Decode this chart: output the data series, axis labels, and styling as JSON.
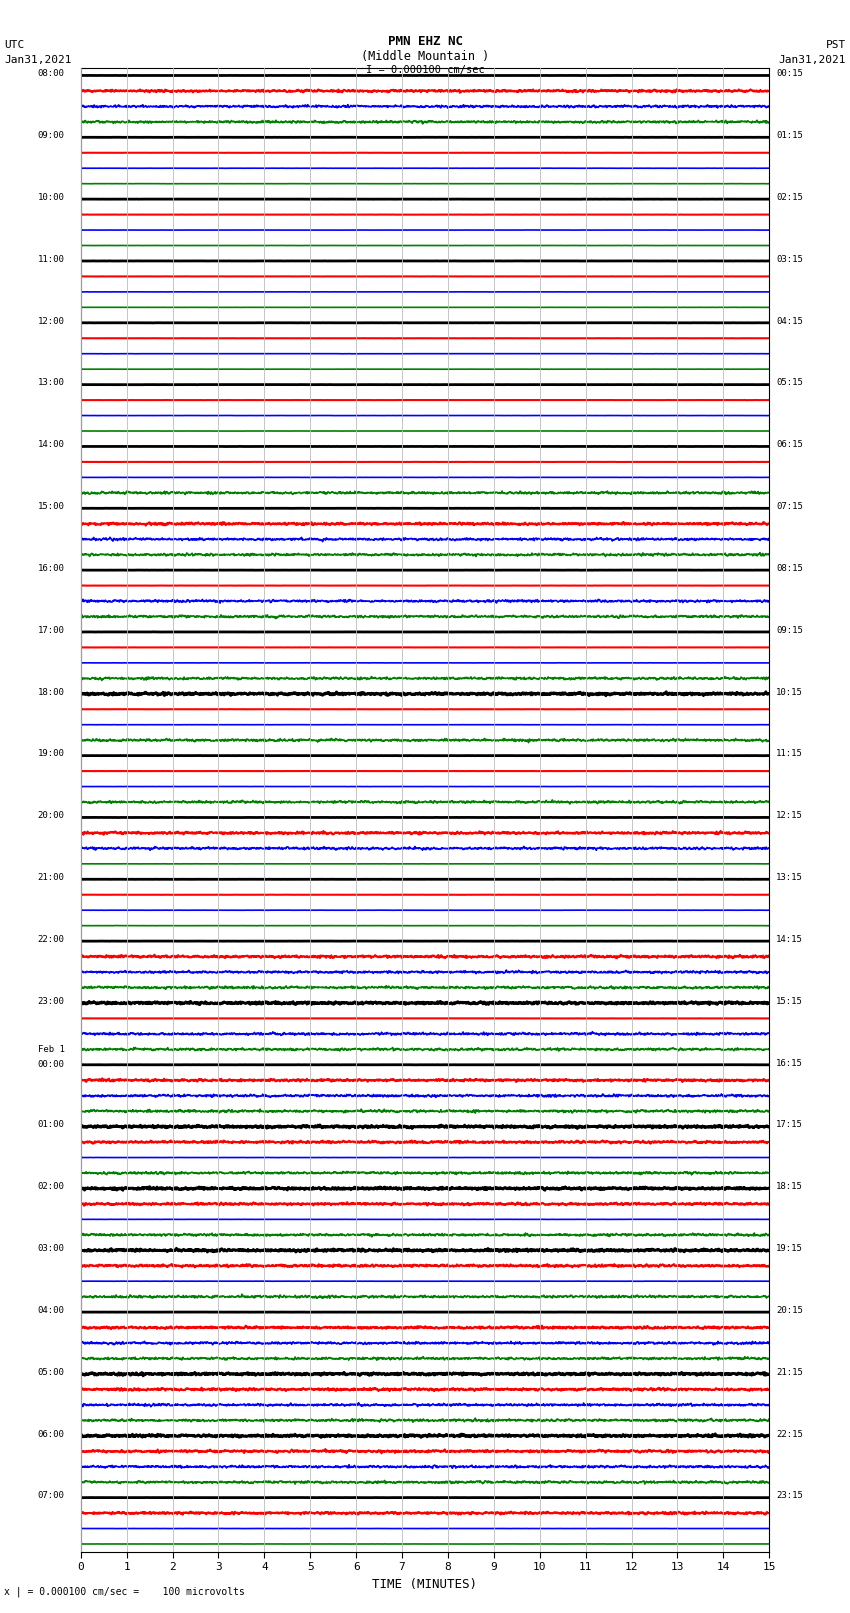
{
  "title_line1": "PMN EHZ NC",
  "title_line2": "(Middle Mountain )",
  "scale_text": "I = 0.000100 cm/sec",
  "left_header1": "UTC",
  "left_header2": "Jan31,2021",
  "right_header1": "PST",
  "right_header2": "Jan31,2021",
  "xlabel": "TIME (MINUTES)",
  "footer": "x | = 0.000100 cm/sec =    100 microvolts",
  "utc_labels": [
    "08:00",
    "09:00",
    "10:00",
    "11:00",
    "12:00",
    "13:00",
    "14:00",
    "15:00",
    "16:00",
    "17:00",
    "18:00",
    "19:00",
    "20:00",
    "21:00",
    "22:00",
    "23:00",
    "Feb 1\n00:00",
    "01:00",
    "02:00",
    "03:00",
    "04:00",
    "05:00",
    "06:00",
    "07:00"
  ],
  "pst_labels": [
    "00:15",
    "01:15",
    "02:15",
    "03:15",
    "04:15",
    "05:15",
    "06:15",
    "07:15",
    "08:15",
    "09:15",
    "10:15",
    "11:15",
    "12:15",
    "13:15",
    "14:15",
    "15:15",
    "16:15",
    "17:15",
    "18:15",
    "19:15",
    "20:15",
    "21:15",
    "22:15",
    "23:15"
  ],
  "trace_colors": [
    "black",
    "red",
    "blue",
    "green"
  ],
  "trace_linewidths": [
    2.0,
    1.5,
    1.2,
    1.2
  ],
  "n_hours": 24,
  "n_traces_per_hour": 4,
  "minutes": 15,
  "background_color": "white",
  "grid_color": "#bbbbbb",
  "noise_levels": {
    "default": 0.003,
    "noisy": {
      "black": [
        10,
        15,
        17,
        18,
        19,
        21,
        22
      ],
      "red": [
        0,
        7,
        12,
        14,
        16,
        17,
        18,
        19,
        20,
        21,
        22,
        23
      ],
      "blue": [
        0,
        7,
        8,
        12,
        14,
        15,
        16,
        20,
        21,
        22
      ],
      "green": [
        0,
        6,
        7,
        8,
        9,
        10,
        11,
        14,
        15,
        16,
        17,
        18,
        19,
        20,
        21,
        22
      ]
    },
    "noisy_scale": 0.05
  }
}
